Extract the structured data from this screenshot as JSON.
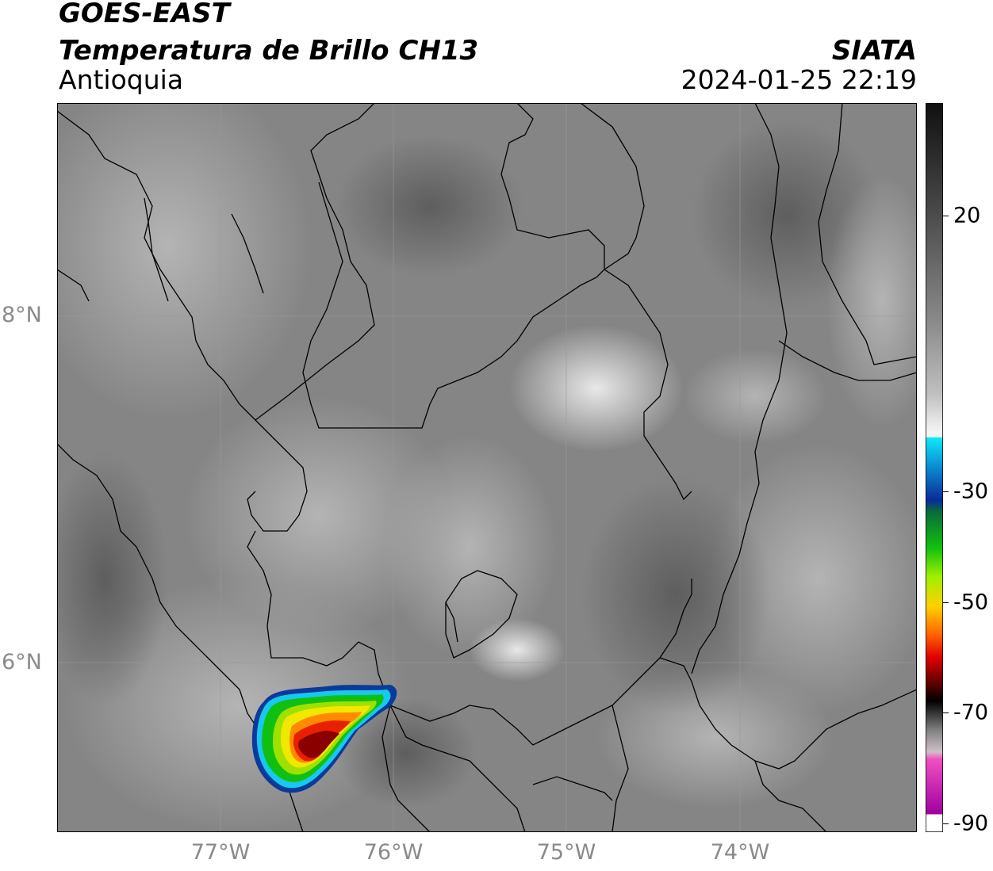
{
  "header": {
    "satellite": "GOES-EAST",
    "product": "Temperatura de Brillo CH13",
    "region": "Antioquia",
    "agency": "SIATA",
    "datetime": "2024-01-25 22:19"
  },
  "map": {
    "lat_labels": [
      "8°N",
      "6°N"
    ],
    "lon_labels": [
      "77°W",
      "76°W",
      "75°W",
      "74°W"
    ],
    "background_color": "#8c8c8c",
    "storm_colors": [
      "#0a3a9a",
      "#18c8ef",
      "#10c010",
      "#a0e000",
      "#f0e800",
      "#ff8a00",
      "#e82000",
      "#8a0000"
    ]
  },
  "colorbar": {
    "ticks": [
      "20",
      "-30",
      "-50",
      "-70",
      "-90"
    ],
    "scale_colors": [
      "#101010",
      "#5a5a5a",
      "#a8a8a8",
      "#f4f4f4",
      "#10e8f8",
      "#0a2a9a",
      "#0a7a3a",
      "#10d010",
      "#c8f000",
      "#ffd000",
      "#ff6000",
      "#e00000",
      "#500000",
      "#000000",
      "#808080",
      "#d0c0c8",
      "#f050c0",
      "#a000a0",
      "#ffffff"
    ]
  }
}
